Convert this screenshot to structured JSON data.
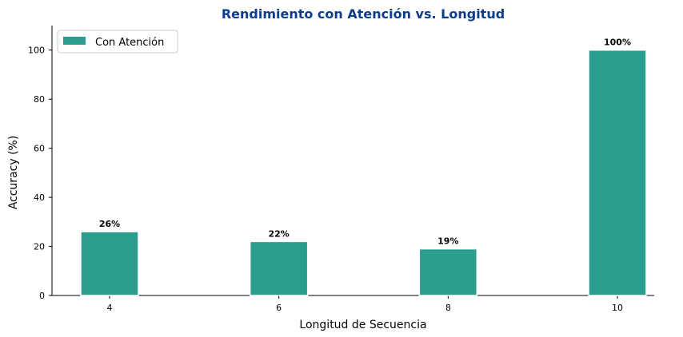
{
  "chart_data": {
    "type": "bar",
    "title": "Rendimiento con Atención vs. Longitud",
    "xlabel": "Longitud de Secuencia",
    "ylabel": "Accuracy (%)",
    "categories": [
      "4",
      "6",
      "8",
      "10"
    ],
    "series": [
      {
        "name": "Con Atención",
        "values": [
          26,
          22,
          19,
          100
        ],
        "data_labels": [
          "26%",
          "22%",
          "19%",
          "100%"
        ]
      }
    ],
    "ylim": [
      0,
      110
    ],
    "yticks": [
      "0",
      "20",
      "40",
      "60",
      "80",
      "100"
    ],
    "grid": false,
    "legend_position": "top-left"
  },
  "colors": {
    "bar": "#2a9d8f",
    "title": "#0b3d8c"
  }
}
